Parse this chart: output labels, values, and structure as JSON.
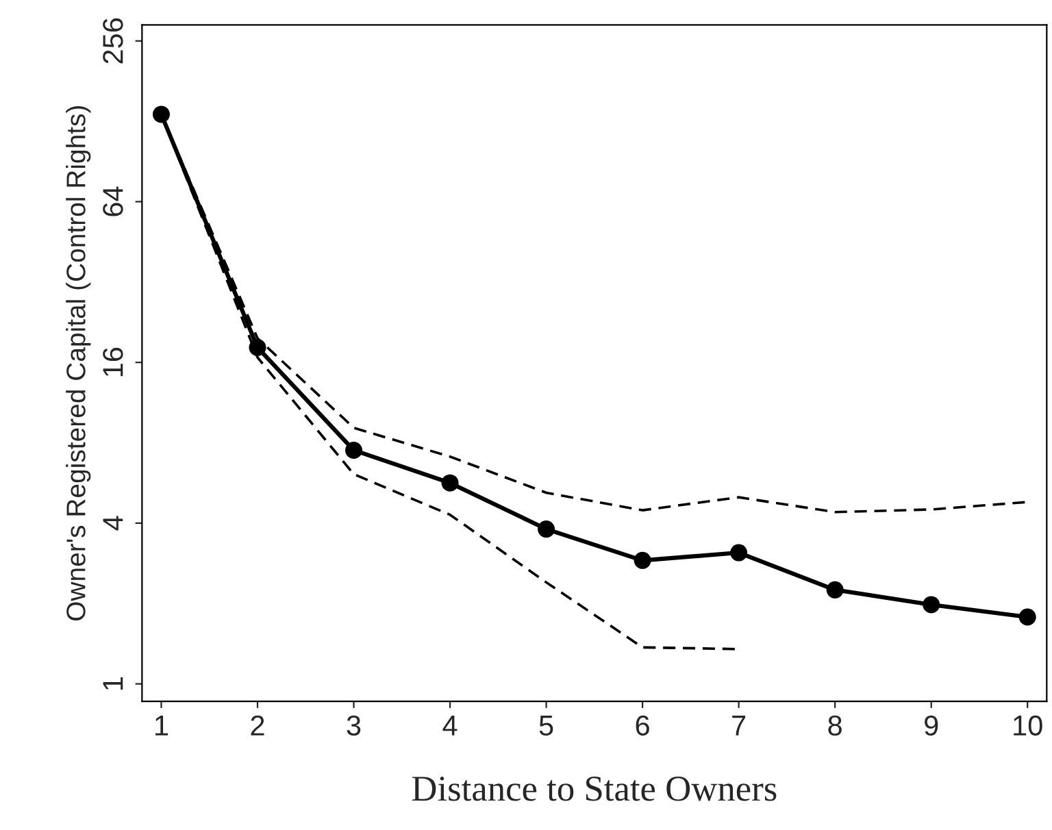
{
  "chart_data": {
    "type": "line",
    "xlabel": "Distance to State Owners",
    "ylabel": "Owner's Registered Capital (Control Rights)",
    "x": [
      1,
      2,
      3,
      4,
      5,
      6,
      7,
      8,
      9,
      10
    ],
    "series": [
      {
        "color": "#000000",
        "marker": "circle",
        "line_style": "solid",
        "values": [
          136,
          18.2,
          7.5,
          5.66,
          3.8,
          2.9,
          3.1,
          2.25,
          1.98,
          1.78
        ]
      },
      {
        "color": "#000000",
        "marker": "none",
        "line_style": "dashed",
        "values": [
          136,
          19.7,
          9.1,
          7.1,
          5.2,
          4.47,
          5.0,
          4.4,
          4.5,
          4.8
        ]
      },
      {
        "color": "#000000",
        "marker": "none",
        "line_style": "dashed",
        "values": [
          136,
          16.7,
          6.1,
          4.3,
          2.4,
          1.37,
          1.35,
          null,
          null,
          null
        ]
      }
    ],
    "log": "y",
    "xlim": [
      0.8,
      10.2
    ],
    "ylim": [
      0.86,
      294
    ],
    "xticks": [
      1,
      2,
      3,
      4,
      5,
      6,
      7,
      8,
      9,
      10
    ],
    "yticks": [
      1,
      4,
      16,
      64,
      256
    ],
    "grid": false
  }
}
